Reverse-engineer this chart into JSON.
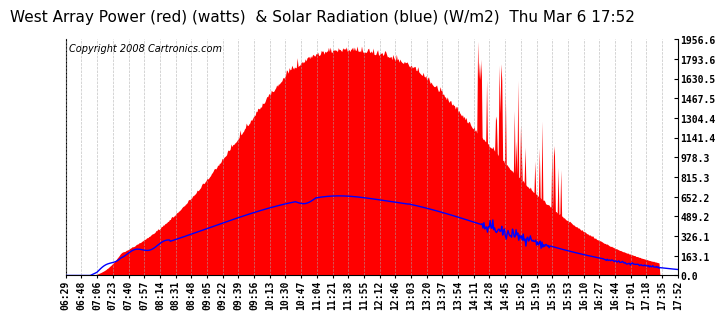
{
  "title": "West Array Power (red) (watts)  & Solar Radiation (blue) (W/m2)  Thu Mar 6 17:52",
  "copyright": "Copyright 2008 Cartronics.com",
  "background_color": "#ffffff",
  "plot_bg_color": "#ffffff",
  "grid_color": "#aaaaaa",
  "y_max": 1956.6,
  "y_min": 0.0,
  "y_ticks": [
    0.0,
    163.1,
    326.1,
    489.2,
    652.2,
    815.3,
    978.3,
    1141.4,
    1304.4,
    1467.5,
    1630.5,
    1793.6,
    1956.6
  ],
  "x_labels": [
    "06:29",
    "06:48",
    "07:06",
    "07:23",
    "07:40",
    "07:57",
    "08:14",
    "08:31",
    "08:48",
    "09:05",
    "09:22",
    "09:39",
    "09:56",
    "10:13",
    "10:30",
    "10:47",
    "11:04",
    "11:21",
    "11:38",
    "11:55",
    "12:12",
    "12:46",
    "13:03",
    "13:20",
    "13:37",
    "13:54",
    "14:11",
    "14:28",
    "14:45",
    "15:02",
    "15:19",
    "15:35",
    "15:53",
    "16:10",
    "16:27",
    "16:44",
    "17:01",
    "17:18",
    "17:35",
    "17:52"
  ],
  "red_fill_color": "#ff0000",
  "blue_line_color": "#0000ff",
  "title_fontsize": 11,
  "axis_fontsize": 7,
  "copyright_fontsize": 7
}
